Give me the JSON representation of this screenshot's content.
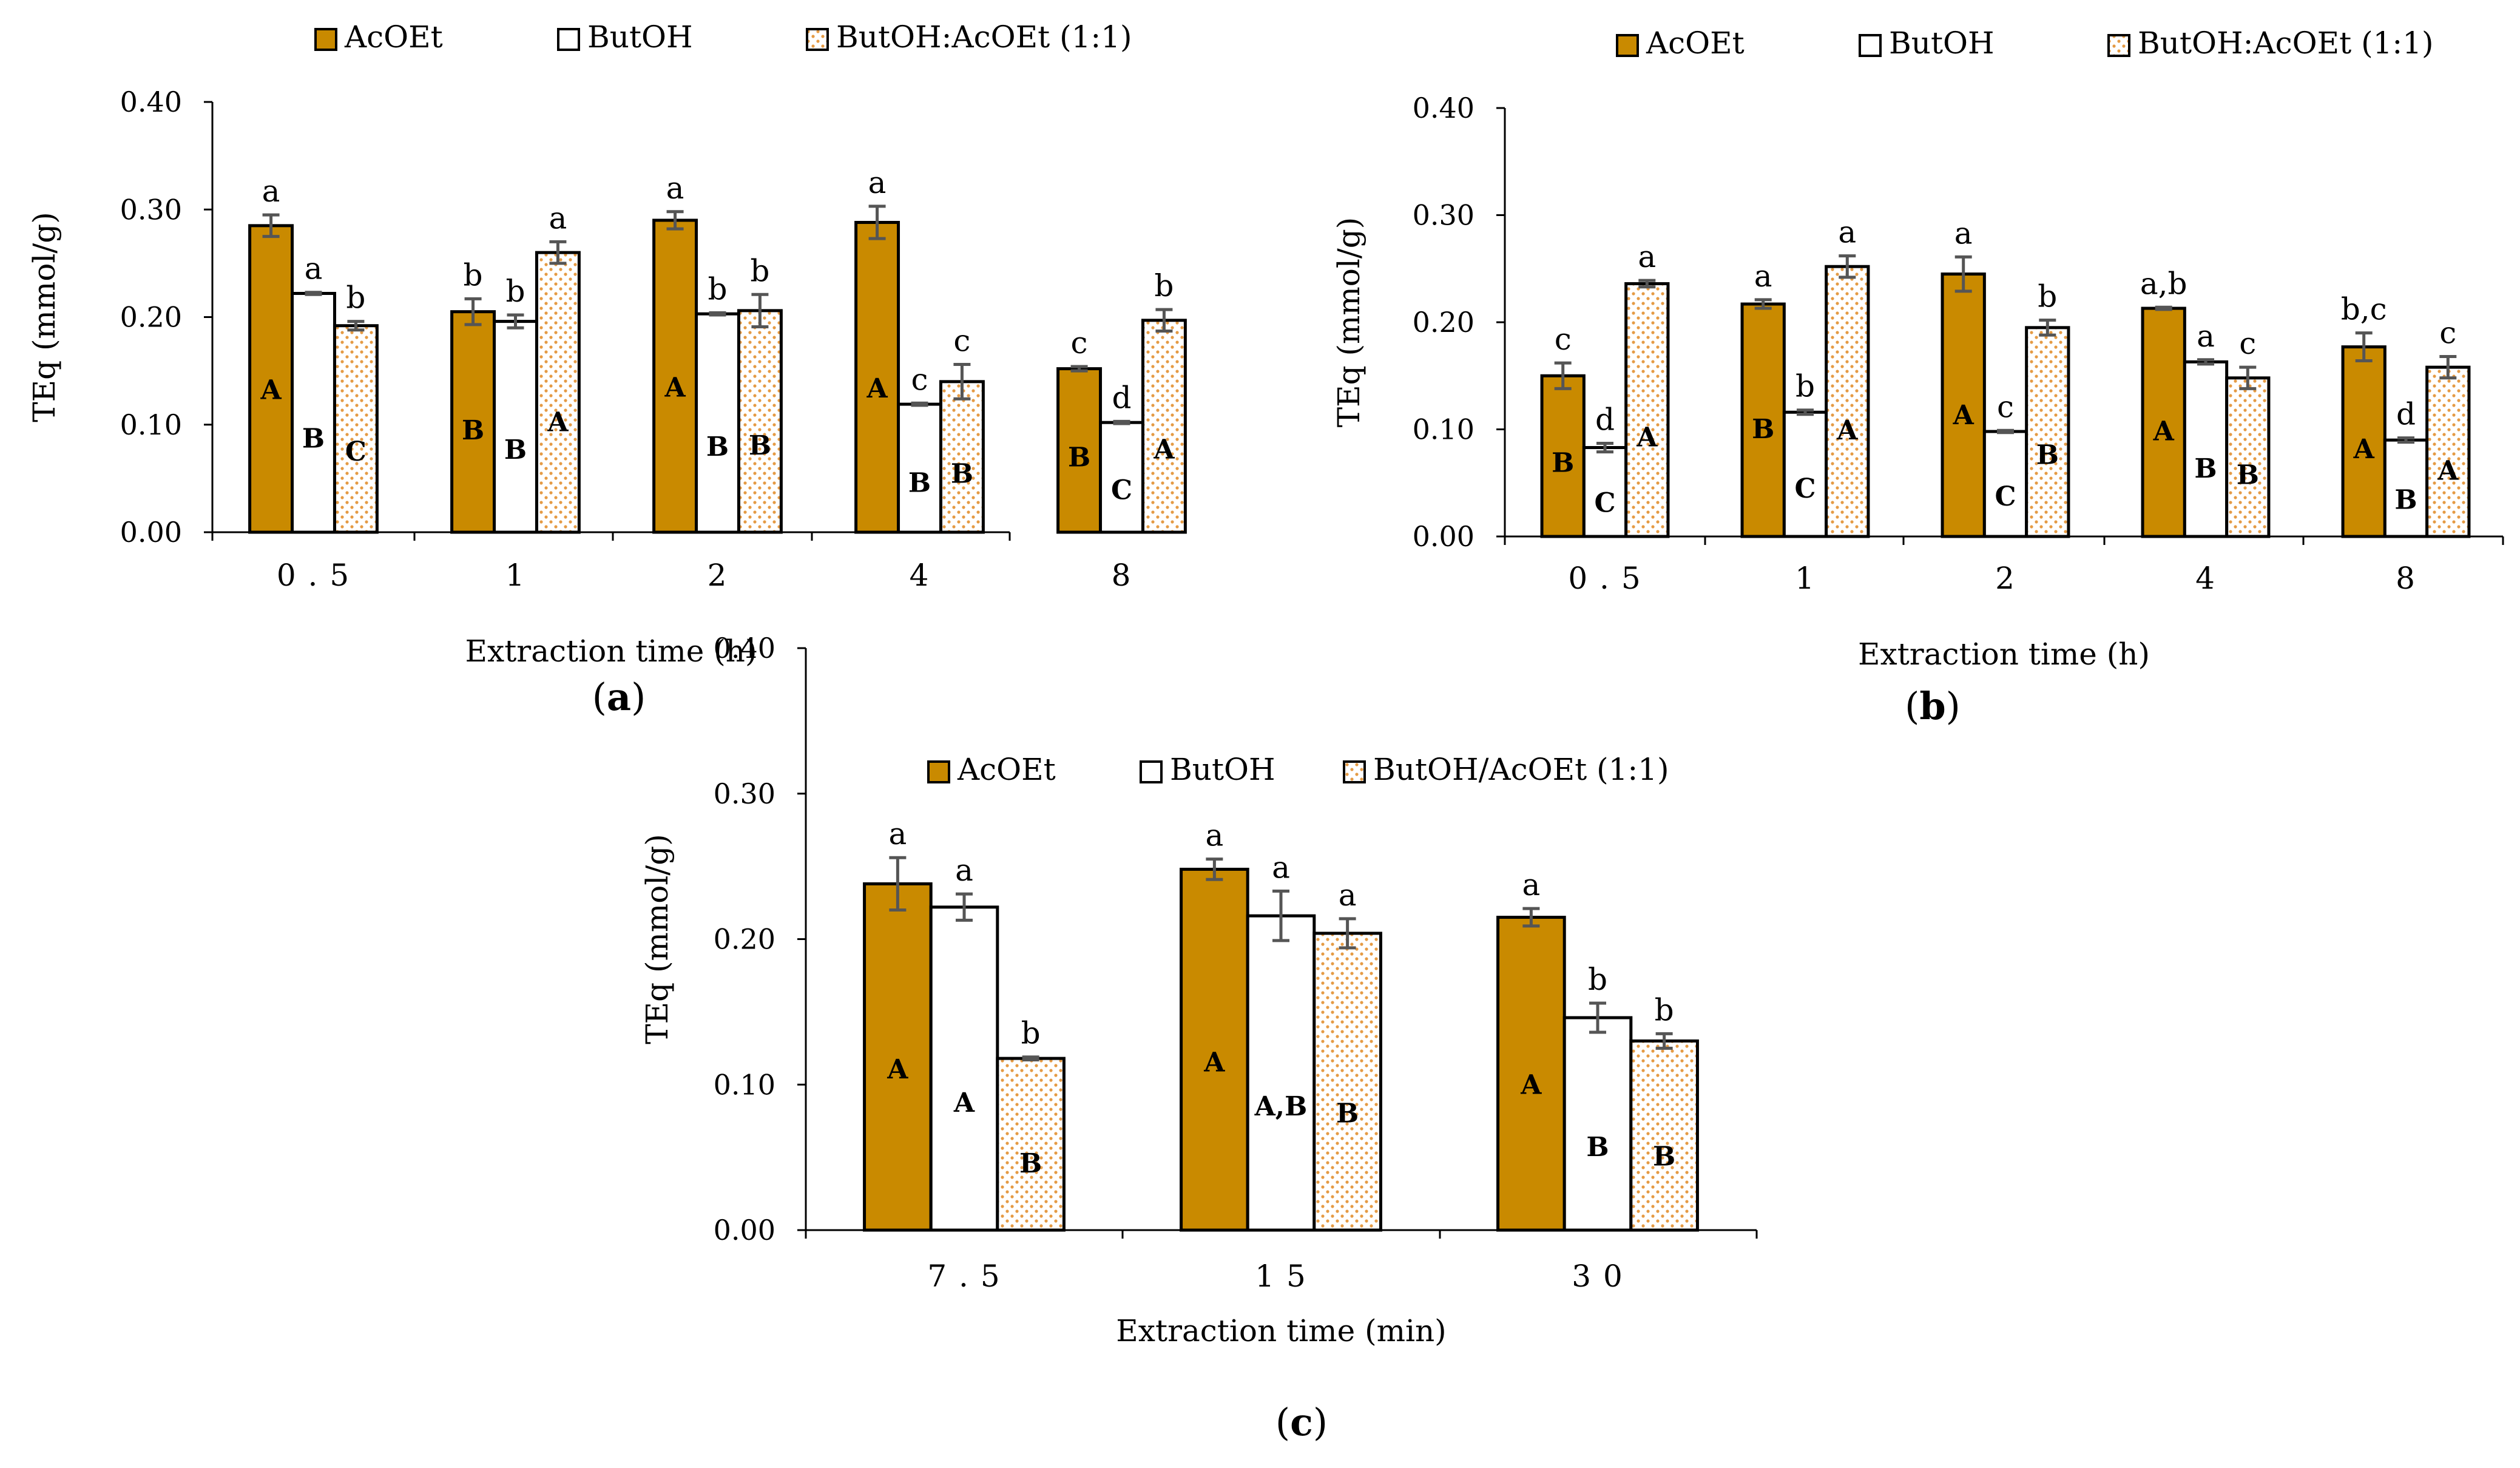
{
  "chart_data": [
    {
      "type": "bar",
      "panel_label": "a",
      "xlabel": "Extraction time (h)",
      "ylabel": "TEq (mmol/g)",
      "ylim": [
        0,
        0.4
      ],
      "yticks": [
        "0.00",
        "0.10",
        "0.20",
        "0.30",
        "0.40"
      ],
      "categories": [
        "0.5",
        "1",
        "2",
        "4",
        "8"
      ],
      "legend": [
        "AcOEt",
        "ButOH",
        "ButOH:AcOEt (1:1)"
      ],
      "series": [
        {
          "name": "AcOEt",
          "values": [
            0.285,
            0.205,
            0.29,
            0.288,
            0.152
          ],
          "errors": [
            0.01,
            0.012,
            0.008,
            0.015,
            0.002
          ],
          "letters": [
            "a",
            "b",
            "a",
            "a",
            "c"
          ],
          "inner_letters": [
            "A",
            "B",
            "A",
            "A",
            "B"
          ]
        },
        {
          "name": "ButOH",
          "values": [
            0.222,
            0.196,
            0.203,
            0.119,
            0.102
          ],
          "errors": [
            0.001,
            0.006,
            0.001,
            0.001,
            0.001
          ],
          "letters": [
            "a",
            "b",
            "b",
            "c",
            "d"
          ],
          "inner_letters": [
            "B",
            "B",
            "B",
            "B",
            "C"
          ]
        },
        {
          "name": "ButOH:AcOEt (1:1)",
          "values": [
            0.192,
            0.26,
            0.206,
            0.14,
            0.197
          ],
          "errors": [
            0.004,
            0.01,
            0.015,
            0.016,
            0.01
          ],
          "letters": [
            "b",
            "a",
            "b",
            "c",
            "b"
          ],
          "inner_letters": [
            "C",
            "A",
            "B",
            "B",
            "A"
          ]
        }
      ]
    },
    {
      "type": "bar",
      "panel_label": "b",
      "xlabel": "Extraction time (h)",
      "ylabel": "TEq (mmol/g)",
      "ylim": [
        0,
        0.4
      ],
      "yticks": [
        "0.00",
        "0.10",
        "0.20",
        "0.30",
        "0.40"
      ],
      "categories": [
        "0.5",
        "1",
        "2",
        "4",
        "8"
      ],
      "legend": [
        "AcOEt",
        "ButOH",
        "ButOH:AcOEt (1:1)"
      ],
      "series": [
        {
          "name": "AcOEt",
          "values": [
            0.15,
            0.217,
            0.245,
            0.213,
            0.177
          ],
          "errors": [
            0.012,
            0.004,
            0.016,
            0.001,
            0.013
          ],
          "letters": [
            "c",
            "a",
            "a",
            "a,b",
            "b,c"
          ],
          "inner_letters": [
            "B",
            "B",
            "A",
            "A",
            "A"
          ]
        },
        {
          "name": "ButOH",
          "values": [
            0.083,
            0.116,
            0.098,
            0.163,
            0.09
          ],
          "errors": [
            0.004,
            0.002,
            0.001,
            0.002,
            0.002
          ],
          "letters": [
            "d",
            "b",
            "c",
            "a",
            "d"
          ],
          "inner_letters": [
            "C",
            "C",
            "C",
            "B",
            "B"
          ]
        },
        {
          "name": "ButOH:AcOEt (1:1)",
          "values": [
            0.236,
            0.252,
            0.195,
            0.148,
            0.158
          ],
          "errors": [
            0.003,
            0.01,
            0.007,
            0.01,
            0.01
          ],
          "letters": [
            "a",
            "a",
            "b",
            "c",
            "c"
          ],
          "inner_letters": [
            "A",
            "A",
            "B",
            "B",
            "A"
          ]
        }
      ]
    },
    {
      "type": "bar",
      "panel_label": "c",
      "xlabel": "Extraction time (min)",
      "ylabel": "TEq (mmol/g)",
      "ylim": [
        0,
        0.4
      ],
      "yticks": [
        "0.00",
        "0.10",
        "0.20",
        "0.30",
        "0.40"
      ],
      "categories": [
        "7.5",
        "15",
        "30"
      ],
      "legend": [
        "AcOEt",
        "ButOH",
        "ButOH/AcOEt (1:1)"
      ],
      "series": [
        {
          "name": "AcOEt",
          "values": [
            0.238,
            0.248,
            0.215
          ],
          "errors": [
            0.018,
            0.007,
            0.006
          ],
          "letters": [
            "a",
            "a",
            "a"
          ],
          "inner_letters": [
            "A",
            "A",
            "A"
          ]
        },
        {
          "name": "ButOH",
          "values": [
            0.222,
            0.216,
            0.146
          ],
          "errors": [
            0.009,
            0.017,
            0.01
          ],
          "letters": [
            "a",
            "a",
            "b"
          ],
          "inner_letters": [
            "A",
            "A,B",
            "B"
          ]
        },
        {
          "name": "ButOH/AcOEt (1:1)",
          "values": [
            0.118,
            0.204,
            0.13
          ],
          "errors": [
            0.001,
            0.01,
            0.005
          ],
          "letters": [
            "b",
            "a",
            "b"
          ],
          "inner_letters": [
            "B",
            "B",
            "B"
          ]
        }
      ]
    }
  ],
  "colors": {
    "acoet_fill": "#c98a00",
    "butoh_fill": "#ffffff",
    "mix_dot": "#e59b45",
    "bar_edge": "#000000",
    "error_bar": "#555555",
    "axis": "#000000"
  }
}
